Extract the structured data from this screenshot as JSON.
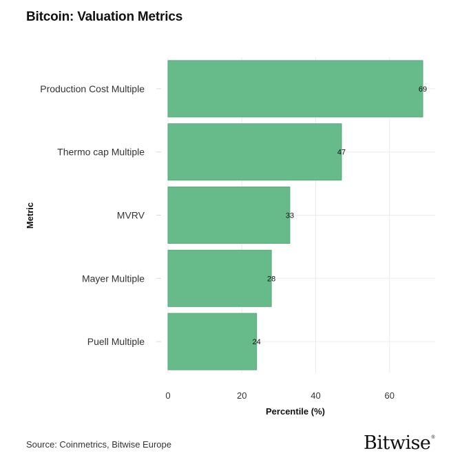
{
  "title": "Bitcoin: Valuation Metrics",
  "source": "Source: Coinmetrics, Bitwise Europe",
  "logo_text": "Bitwise",
  "logo_mark": "®",
  "colors": {
    "bar": "#67bb8a",
    "bar_edge": "#5aa97b",
    "grid": "#ececec",
    "text": "#222222"
  },
  "chart_data": {
    "type": "bar",
    "orientation": "horizontal",
    "categories": [
      "Production Cost Multiple",
      "Thermo cap Multiple",
      "MVRV",
      "Mayer Multiple",
      "Puell Multiple"
    ],
    "values": [
      69,
      47,
      33,
      28,
      24
    ],
    "data_labels": [
      "69",
      "47",
      "33",
      "28",
      "24"
    ],
    "xlabel": "Percentile (%)",
    "ylabel": "Metric",
    "xlim": [
      0,
      72
    ],
    "xticks": [
      0,
      20,
      40,
      60
    ],
    "xtick_labels": [
      "0",
      "20",
      "40",
      "60"
    ],
    "grid": true,
    "legend": "none"
  }
}
